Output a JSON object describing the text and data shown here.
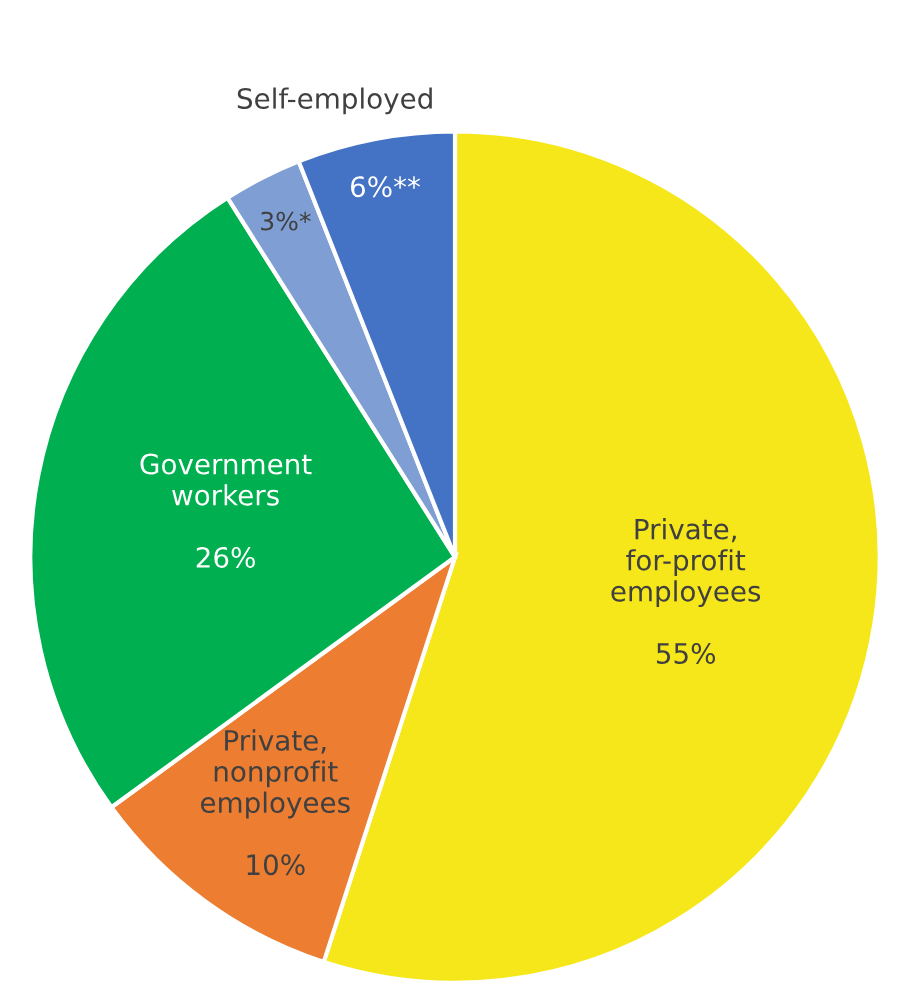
{
  "chart_data": {
    "type": "pie",
    "categories": [
      "Private,\nfor-profit\nemployees",
      "Private,\nnonprofit\nemployees",
      "Government\nworkers",
      null,
      null
    ],
    "values": [
      55,
      10,
      26,
      3,
      6
    ],
    "value_labels": [
      "55%",
      "10%",
      "26%",
      "3%*",
      "6%**"
    ],
    "colors": [
      "#f5e71a",
      "#ec7d31",
      "#00b050",
      "#7f9fd4",
      "#4472c4"
    ],
    "annotations": [
      "Self-employed"
    ],
    "legend": false
  }
}
